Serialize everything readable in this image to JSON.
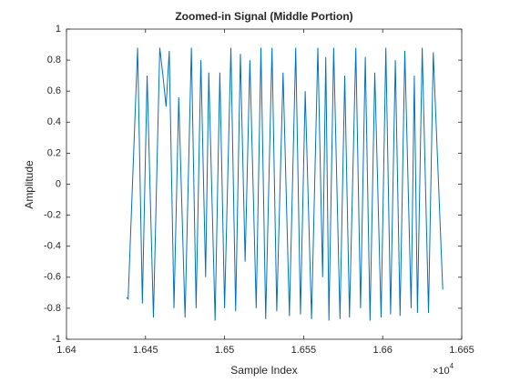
{
  "chart_data": {
    "type": "line",
    "title": "Zoomed-in Signal (Middle Portion)",
    "x_label": "Sample Index",
    "y_label": "Amplitude",
    "x_multiplier": "×10",
    "x_exponent": "4",
    "x": [
      16438,
      16439,
      16445,
      16448,
      16451,
      16455,
      16459,
      16461,
      16463,
      16465,
      16468,
      16471,
      16475,
      16479,
      16482,
      16485,
      16488,
      16490,
      16494,
      16497,
      16500,
      16504,
      16507,
      16510,
      16513,
      16516,
      16520,
      16523,
      16526,
      16530,
      16533,
      16537,
      16541,
      16545,
      16548,
      16551,
      16555,
      16559,
      16562,
      16564,
      16566,
      16569,
      16573,
      16576,
      16579,
      16583,
      16586,
      16589,
      16592,
      16595,
      16599,
      16602,
      16605,
      16608,
      16611,
      16614,
      16618,
      16620,
      16622,
      16625,
      16629,
      16632,
      16638
    ],
    "series": [
      {
        "color": "#0072bd",
        "values": [
          -0.73,
          -0.74,
          0.88,
          -0.77,
          0.7,
          -0.86,
          0.88,
          0.7,
          0.5,
          0.86,
          -0.8,
          0.56,
          -0.86,
          0.88,
          -0.8,
          0.8,
          -0.6,
          0.72,
          -0.88,
          0.72,
          -0.8,
          0.88,
          -0.82,
          0.84,
          -0.5,
          0.8,
          -0.8,
          0.88,
          -0.87,
          0.88,
          -0.82,
          0.72,
          -0.85,
          0.88,
          -0.84,
          0.6,
          -0.87,
          0.88,
          -0.6,
          0.82,
          -0.88,
          0.88,
          -0.87,
          0.7,
          -0.86,
          0.88,
          -0.8,
          0.82,
          -0.88,
          0.72,
          -0.86,
          0.88,
          -0.84,
          0.8,
          -0.85,
          0.86,
          -0.8,
          0.7,
          -0.83,
          0.88,
          -0.83,
          0.85,
          -0.68
        ]
      }
    ],
    "xlim": [
      16400,
      16650
    ],
    "xticks": [
      {
        "value": 16400,
        "label": "1.64"
      },
      {
        "value": 16450,
        "label": "1.645"
      },
      {
        "value": 16500,
        "label": "1.65"
      },
      {
        "value": 16550,
        "label": "1.655"
      },
      {
        "value": 16600,
        "label": "1.66"
      },
      {
        "value": 16650,
        "label": "1.665"
      }
    ],
    "ylim": [
      -1,
      1
    ],
    "yticks": [
      -1,
      -0.8,
      -0.6,
      -0.4,
      -0.2,
      0,
      0.2,
      0.4,
      0.6,
      0.8,
      1
    ],
    "grid": false
  }
}
